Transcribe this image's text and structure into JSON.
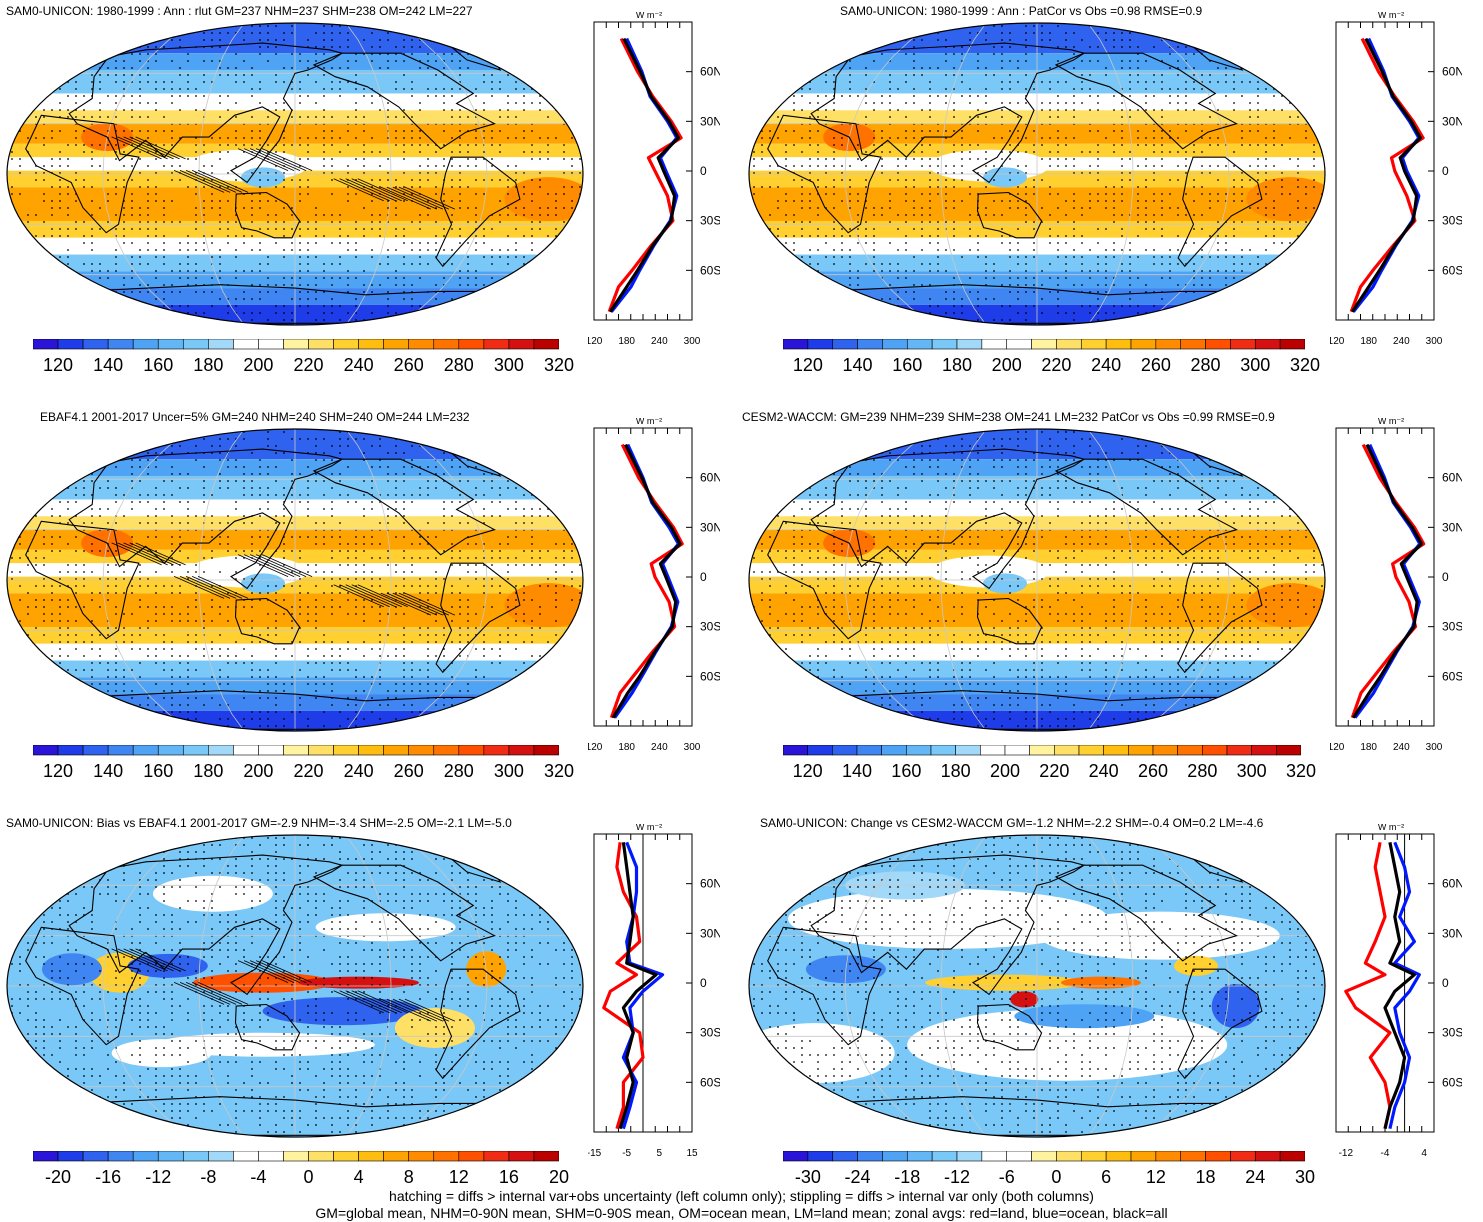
{
  "colors": {
    "standard_scale": [
      "#2a14d8",
      "#1e3ce8",
      "#2f62ee",
      "#3f86f2",
      "#4fa3f5",
      "#64b7f7",
      "#79c8f8",
      "#a2d8f8",
      "#ffffff",
      "#ffffff",
      "#fff3a0",
      "#ffe066",
      "#ffd030",
      "#ffbd10",
      "#ffa300",
      "#ff8c00",
      "#ff7200",
      "#ff5000",
      "#f02c14",
      "#d51010",
      "#bb0000"
    ],
    "diff_scale": [
      "#2a14d8",
      "#1e3ce8",
      "#2f62ee",
      "#3f86f2",
      "#4fa3f5",
      "#64b7f7",
      "#79c8f8",
      "#a2d8f8",
      "#ffffff",
      "#ffffff",
      "#fff3a0",
      "#ffe066",
      "#ffd030",
      "#ffbd10",
      "#ffa300",
      "#ff8c00",
      "#ff7200",
      "#ff5000",
      "#f02c14",
      "#d51010",
      "#bb0000"
    ],
    "zonal_land": "#ff0000",
    "zonal_ocean": "#0018ff",
    "zonal_all": "#000000"
  },
  "panels": [
    {
      "id": "sam0-unicon-climatology",
      "title": "SAM0-UNICON: 1980-1999 : Ann : rlut GM=237 NHM=237 SHM=238 OM=242 LM=227",
      "map_kind": "climate",
      "colorbar_labels": [
        "120",
        "140",
        "160",
        "180",
        "200",
        "220",
        "240",
        "260",
        "280",
        "300",
        "320"
      ],
      "zonal_unit": "W m⁻²",
      "zonal_lat_labels": [
        "60N",
        "30N",
        "0",
        "30S",
        "60S"
      ],
      "zonal_x_labels": [
        "120",
        "180",
        "240",
        "300"
      ],
      "zonal_x_range": [
        120,
        300
      ],
      "zonal_profile": [
        {
          "lat": 80,
          "all": 175,
          "land": 170,
          "ocean": 180
        },
        {
          "lat": 60,
          "all": 205,
          "land": 200,
          "ocean": 208
        },
        {
          "lat": 45,
          "all": 225,
          "land": 228,
          "ocean": 223
        },
        {
          "lat": 30,
          "all": 258,
          "land": 262,
          "ocean": 255
        },
        {
          "lat": 20,
          "all": 275,
          "land": 280,
          "ocean": 272
        },
        {
          "lat": 8,
          "all": 238,
          "land": 220,
          "ocean": 242
        },
        {
          "lat": 0,
          "all": 248,
          "land": 232,
          "ocean": 252
        },
        {
          "lat": -15,
          "all": 268,
          "land": 255,
          "ocean": 272
        },
        {
          "lat": -30,
          "all": 262,
          "land": 265,
          "ocean": 260
        },
        {
          "lat": -45,
          "all": 228,
          "land": 225,
          "ocean": 230
        },
        {
          "lat": -60,
          "all": 200,
          "land": 190,
          "ocean": 204
        },
        {
          "lat": -70,
          "all": 180,
          "land": 165,
          "ocean": 188
        },
        {
          "lat": -85,
          "all": 150,
          "land": 148,
          "ocean": 152
        }
      ]
    },
    {
      "id": "sam0-unicon-patcor",
      "title": "SAM0-UNICON: 1980-1999 : Ann : PatCor vs Obs =0.98 RMSE=0.9",
      "map_kind": "climate",
      "colorbar_labels": [
        "120",
        "140",
        "160",
        "180",
        "200",
        "220",
        "240",
        "260",
        "280",
        "300",
        "320"
      ],
      "zonal_unit": "W m⁻²",
      "zonal_lat_labels": [
        "60N",
        "30N",
        "0",
        "30S",
        "60S"
      ],
      "zonal_x_labels": [
        "120",
        "180",
        "240",
        "300"
      ],
      "zonal_x_range": [
        120,
        300
      ],
      "zonal_profile": [
        {
          "lat": 80,
          "all": 175,
          "land": 168,
          "ocean": 180
        },
        {
          "lat": 60,
          "all": 205,
          "land": 198,
          "ocean": 208
        },
        {
          "lat": 45,
          "all": 225,
          "land": 228,
          "ocean": 223
        },
        {
          "lat": 30,
          "all": 258,
          "land": 262,
          "ocean": 255
        },
        {
          "lat": 20,
          "all": 275,
          "land": 280,
          "ocean": 272
        },
        {
          "lat": 8,
          "all": 238,
          "land": 222,
          "ocean": 242
        },
        {
          "lat": 0,
          "all": 246,
          "land": 228,
          "ocean": 250
        },
        {
          "lat": -15,
          "all": 268,
          "land": 250,
          "ocean": 272
        },
        {
          "lat": -30,
          "all": 262,
          "land": 265,
          "ocean": 260
        },
        {
          "lat": -45,
          "all": 228,
          "land": 225,
          "ocean": 230
        },
        {
          "lat": -60,
          "all": 200,
          "land": 188,
          "ocean": 204
        },
        {
          "lat": -70,
          "all": 180,
          "land": 165,
          "ocean": 188
        },
        {
          "lat": -85,
          "all": 150,
          "land": 148,
          "ocean": 152
        }
      ]
    },
    {
      "id": "ebaf-observations",
      "title": "EBAF4.1 2001-2017 Uncer=5% GM=240 NHM=240 SHM=240 OM=244 LM=232",
      "map_kind": "climate",
      "colorbar_labels": [
        "120",
        "140",
        "160",
        "180",
        "200",
        "220",
        "240",
        "260",
        "280",
        "300",
        "320"
      ],
      "zonal_unit": "W m⁻²",
      "zonal_lat_labels": [
        "60N",
        "30N",
        "0",
        "30S",
        "60S"
      ],
      "zonal_x_labels": [
        "120",
        "180",
        "240",
        "300"
      ],
      "zonal_x_range": [
        120,
        300
      ],
      "zonal_profile": [
        {
          "lat": 80,
          "all": 178,
          "land": 172,
          "ocean": 182
        },
        {
          "lat": 60,
          "all": 208,
          "land": 202,
          "ocean": 210
        },
        {
          "lat": 45,
          "all": 228,
          "land": 232,
          "ocean": 226
        },
        {
          "lat": 30,
          "all": 262,
          "land": 266,
          "ocean": 258
        },
        {
          "lat": 20,
          "all": 278,
          "land": 282,
          "ocean": 275
        },
        {
          "lat": 8,
          "all": 242,
          "land": 225,
          "ocean": 246
        },
        {
          "lat": 0,
          "all": 252,
          "land": 232,
          "ocean": 256
        },
        {
          "lat": -15,
          "all": 270,
          "land": 258,
          "ocean": 274
        },
        {
          "lat": -30,
          "all": 264,
          "land": 268,
          "ocean": 262
        },
        {
          "lat": -45,
          "all": 232,
          "land": 228,
          "ocean": 234
        },
        {
          "lat": -60,
          "all": 204,
          "land": 192,
          "ocean": 208
        },
        {
          "lat": -70,
          "all": 182,
          "land": 168,
          "ocean": 190
        },
        {
          "lat": -85,
          "all": 155,
          "land": 152,
          "ocean": 158
        }
      ]
    },
    {
      "id": "cesm2-waccm",
      "title": "CESM2-WACCM: GM=239 NHM=239 SHM=238 OM=241 LM=232 PatCor vs Obs =0.99 RMSE=0.9",
      "map_kind": "climate",
      "colorbar_labels": [
        "120",
        "140",
        "160",
        "180",
        "200",
        "220",
        "240",
        "260",
        "280",
        "300",
        "320"
      ],
      "zonal_unit": "W m⁻²",
      "zonal_lat_labels": [
        "60N",
        "30N",
        "0",
        "30S",
        "60S"
      ],
      "zonal_x_labels": [
        "120",
        "180",
        "240",
        "300"
      ],
      "zonal_x_range": [
        120,
        300
      ],
      "zonal_profile": [
        {
          "lat": 80,
          "all": 177,
          "land": 170,
          "ocean": 182
        },
        {
          "lat": 60,
          "all": 206,
          "land": 200,
          "ocean": 209
        },
        {
          "lat": 45,
          "all": 227,
          "land": 230,
          "ocean": 225
        },
        {
          "lat": 30,
          "all": 260,
          "land": 264,
          "ocean": 257
        },
        {
          "lat": 20,
          "all": 277,
          "land": 281,
          "ocean": 274
        },
        {
          "lat": 8,
          "all": 240,
          "land": 224,
          "ocean": 244
        },
        {
          "lat": 0,
          "all": 250,
          "land": 230,
          "ocean": 254
        },
        {
          "lat": -15,
          "all": 269,
          "land": 254,
          "ocean": 273
        },
        {
          "lat": -30,
          "all": 263,
          "land": 266,
          "ocean": 261
        },
        {
          "lat": -45,
          "all": 230,
          "land": 226,
          "ocean": 232
        },
        {
          "lat": -60,
          "all": 202,
          "land": 190,
          "ocean": 206
        },
        {
          "lat": -70,
          "all": 181,
          "land": 166,
          "ocean": 189
        },
        {
          "lat": -85,
          "all": 152,
          "land": 150,
          "ocean": 155
        }
      ]
    },
    {
      "id": "sam0-unicon-bias",
      "title": "SAM0-UNICON: Bias vs EBAF4.1 2001-2017 GM=-2.9 NHM=-3.4 SHM=-2.5 OM=-2.1 LM=-5.0",
      "map_kind": "diff",
      "colorbar_labels": [
        "-20",
        "-16",
        "-12",
        "-8",
        "-4",
        "0",
        "4",
        "8",
        "12",
        "16",
        "20"
      ],
      "zonal_unit": "W m⁻²",
      "zonal_lat_labels": [
        "60N",
        "30N",
        "0",
        "30S",
        "60S"
      ],
      "zonal_x_labels": [
        "-15",
        "-5",
        "5",
        "15"
      ],
      "zonal_x_range": [
        -15,
        15
      ],
      "zonal_zero_line": 0,
      "zonal_profile": [
        {
          "lat": 85,
          "all": -6,
          "land": -7,
          "ocean": -5
        },
        {
          "lat": 70,
          "all": -5,
          "land": -8,
          "ocean": -2
        },
        {
          "lat": 55,
          "all": -4,
          "land": -6,
          "ocean": -2
        },
        {
          "lat": 40,
          "all": -3,
          "land": -2,
          "ocean": -3
        },
        {
          "lat": 25,
          "all": -4,
          "land": -1,
          "ocean": -5
        },
        {
          "lat": 12,
          "all": -5,
          "land": -8,
          "ocean": -4
        },
        {
          "lat": 5,
          "all": 4,
          "land": -2,
          "ocean": 6
        },
        {
          "lat": -5,
          "all": -2,
          "land": -10,
          "ocean": 0
        },
        {
          "lat": -15,
          "all": -6,
          "land": -12,
          "ocean": -4
        },
        {
          "lat": -30,
          "all": -3,
          "land": -1,
          "ocean": -3
        },
        {
          "lat": -45,
          "all": -5,
          "land": 0,
          "ocean": -6
        },
        {
          "lat": -60,
          "all": -3,
          "land": -6,
          "ocean": -2
        },
        {
          "lat": -75,
          "all": -5,
          "land": -6,
          "ocean": -4
        },
        {
          "lat": -88,
          "all": -7,
          "land": -8,
          "ocean": -6
        }
      ]
    },
    {
      "id": "sam0-unicon-change",
      "title": "SAM0-UNICON: Change vs CESM2-WACCM GM=-1.2 NHM=-2.2 SHM=-0.4 OM=0.2 LM=-4.6",
      "map_kind": "change",
      "colorbar_labels": [
        "-30",
        "-24",
        "-18",
        "-12",
        "-6",
        "0",
        "6",
        "12",
        "18",
        "24",
        "30"
      ],
      "zonal_unit": "W m⁻²",
      "zonal_lat_labels": [
        "60N",
        "30N",
        "0",
        "30S",
        "60S"
      ],
      "zonal_x_labels": [
        "-12",
        "-4",
        "4"
      ],
      "zonal_x_range": [
        -14,
        6
      ],
      "zonal_zero_line": 0,
      "zonal_profile": [
        {
          "lat": 85,
          "all": -3,
          "land": -5,
          "ocean": -2
        },
        {
          "lat": 70,
          "all": -2,
          "land": -6,
          "ocean": 0
        },
        {
          "lat": 55,
          "all": -1,
          "land": -5,
          "ocean": 1
        },
        {
          "lat": 40,
          "all": -2,
          "land": -4,
          "ocean": -1
        },
        {
          "lat": 25,
          "all": -1,
          "land": -6,
          "ocean": 2
        },
        {
          "lat": 12,
          "all": -3,
          "land": -8,
          "ocean": -2
        },
        {
          "lat": 5,
          "all": 2,
          "land": -4,
          "ocean": 3
        },
        {
          "lat": -5,
          "all": -2,
          "land": -12,
          "ocean": 1
        },
        {
          "lat": -15,
          "all": -4,
          "land": -10,
          "ocean": -2
        },
        {
          "lat": -30,
          "all": -2,
          "land": -3,
          "ocean": -1
        },
        {
          "lat": -45,
          "all": 0,
          "land": -7,
          "ocean": 1
        },
        {
          "lat": -60,
          "all": -1,
          "land": -4,
          "ocean": 0
        },
        {
          "lat": -75,
          "all": -3,
          "land": -3,
          "ocean": -2
        },
        {
          "lat": -88,
          "all": -4,
          "land": -4,
          "ocean": -3
        }
      ]
    }
  ],
  "footer": {
    "line1": "hatching = diffs > internal var+obs uncertainty (left column only); stippling = diffs > internal var only (both columns)",
    "line2": "GM=global mean, NHM=0-90N mean, SHM=0-90S mean, OM=ocean mean, LM=land mean; zonal avgs: red=land, blue=ocean, black=all"
  }
}
